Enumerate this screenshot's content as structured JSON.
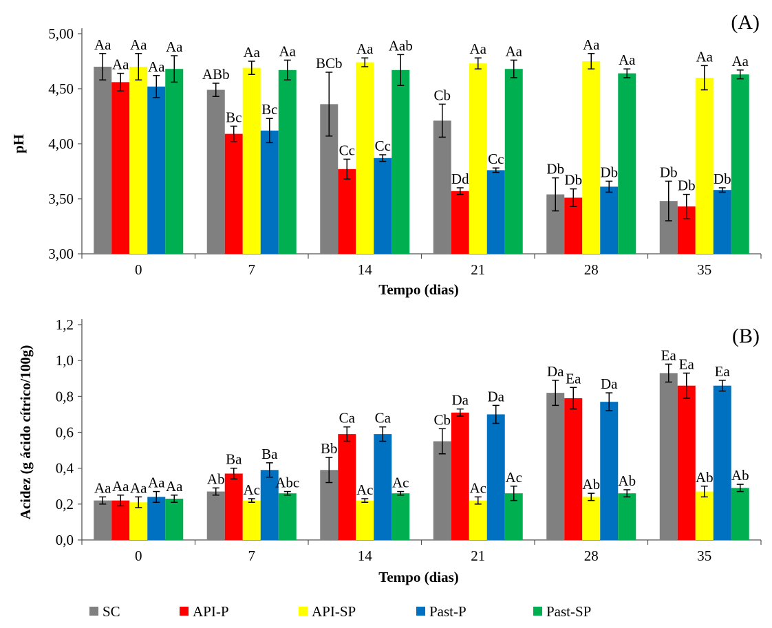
{
  "legend": {
    "items": [
      {
        "name": "SC",
        "color": "#808080"
      },
      {
        "name": "API-P",
        "color": "#ff0000"
      },
      {
        "name": "API-SP",
        "color": "#ffff00"
      },
      {
        "name": "Past-P",
        "color": "#0070c0"
      },
      {
        "name": "Past-SP",
        "color": "#00b050"
      }
    ]
  },
  "chart_data": [
    {
      "type": "bar",
      "panel_label": "(A)",
      "xlabel": "Tempo (dias)",
      "ylabel": "pH",
      "ylim": [
        3.0,
        5.0
      ],
      "yticks": [
        "3,00",
        "3,50",
        "4,00",
        "4,50",
        "5,00"
      ],
      "categories": [
        "0",
        "7",
        "14",
        "21",
        "28",
        "35"
      ],
      "series": [
        {
          "name": "SC",
          "color": "#808080",
          "values": [
            4.7,
            4.49,
            4.36,
            4.21,
            3.54,
            3.48
          ],
          "errors": [
            0.12,
            0.06,
            0.29,
            0.15,
            0.15,
            0.18
          ],
          "labels": [
            "Aa",
            "ABb",
            "BCb",
            "Cb",
            "Db",
            "Db"
          ]
        },
        {
          "name": "API-P",
          "color": "#ff0000",
          "values": [
            4.56,
            4.09,
            3.77,
            3.57,
            3.51,
            3.43
          ],
          "errors": [
            0.08,
            0.07,
            0.09,
            0.03,
            0.08,
            0.11
          ],
          "labels": [
            "Aa",
            "Bc",
            "Cc",
            "Dd",
            "Db",
            "Db"
          ]
        },
        {
          "name": "API-SP",
          "color": "#ffff00",
          "values": [
            4.7,
            4.69,
            4.74,
            4.73,
            4.75,
            4.6
          ],
          "errors": [
            0.12,
            0.06,
            0.04,
            0.05,
            0.07,
            0.11
          ],
          "labels": [
            "Aa",
            "Aa",
            "Aa",
            "Aa",
            "Aa",
            "Aa"
          ]
        },
        {
          "name": "Past-P",
          "color": "#0070c0",
          "values": [
            4.52,
            4.12,
            3.87,
            3.76,
            3.61,
            3.58
          ],
          "errors": [
            0.1,
            0.11,
            0.03,
            0.02,
            0.05,
            0.02
          ],
          "labels": [
            "Aa",
            "Bc",
            "Cc",
            "Cc",
            "Db",
            "Db"
          ]
        },
        {
          "name": "Past-SP",
          "color": "#00b050",
          "values": [
            4.68,
            4.67,
            4.67,
            4.68,
            4.64,
            4.63
          ],
          "errors": [
            0.12,
            0.09,
            0.14,
            0.08,
            0.04,
            0.04
          ],
          "labels": [
            "Aa",
            "Aa",
            "Aab",
            "Aa",
            "Aa",
            "Aa"
          ]
        }
      ]
    },
    {
      "type": "bar",
      "panel_label": "(B)",
      "xlabel": "Tempo (dias)",
      "ylabel": "Acidez (g ácido cítrico/100g)",
      "ylim": [
        0.0,
        1.2
      ],
      "yticks": [
        "0,0",
        "0,2",
        "0,4",
        "0,6",
        "0,8",
        "1,0",
        "1,2"
      ],
      "categories": [
        "0",
        "7",
        "14",
        "21",
        "28",
        "35"
      ],
      "series": [
        {
          "name": "SC",
          "color": "#808080",
          "values": [
            0.22,
            0.27,
            0.39,
            0.55,
            0.82,
            0.93
          ],
          "errors": [
            0.02,
            0.02,
            0.07,
            0.07,
            0.07,
            0.05
          ],
          "labels": [
            "Aa",
            "Ab",
            "Bb",
            "Cb",
            "Da",
            "Ea"
          ]
        },
        {
          "name": "API-P",
          "color": "#ff0000",
          "values": [
            0.22,
            0.37,
            0.59,
            0.71,
            0.79,
            0.86
          ],
          "errors": [
            0.03,
            0.03,
            0.04,
            0.02,
            0.06,
            0.07
          ],
          "labels": [
            "Aa",
            "Ba",
            "Ca",
            "Da",
            "Ea",
            "Ea"
          ]
        },
        {
          "name": "API-SP",
          "color": "#ffff00",
          "values": [
            0.21,
            0.22,
            0.22,
            0.22,
            0.24,
            0.27
          ],
          "errors": [
            0.03,
            0.01,
            0.01,
            0.02,
            0.02,
            0.03
          ],
          "labels": [
            "Aa",
            "Ac",
            "Ac",
            "Ac",
            "Ab",
            "Ab"
          ]
        },
        {
          "name": "Past-P",
          "color": "#0070c0",
          "values": [
            0.24,
            0.39,
            0.59,
            0.7,
            0.77,
            0.86
          ],
          "errors": [
            0.03,
            0.04,
            0.04,
            0.05,
            0.05,
            0.03
          ],
          "labels": [
            "Aa",
            "Ba",
            "Ca",
            "Da",
            "Da",
            "Ea"
          ]
        },
        {
          "name": "Past-SP",
          "color": "#00b050",
          "values": [
            0.23,
            0.26,
            0.26,
            0.26,
            0.26,
            0.29
          ],
          "errors": [
            0.02,
            0.01,
            0.01,
            0.04,
            0.02,
            0.02
          ],
          "labels": [
            "Aa",
            "Abc",
            "Ac",
            "Ac",
            "Ab",
            "Ab"
          ]
        }
      ]
    }
  ]
}
